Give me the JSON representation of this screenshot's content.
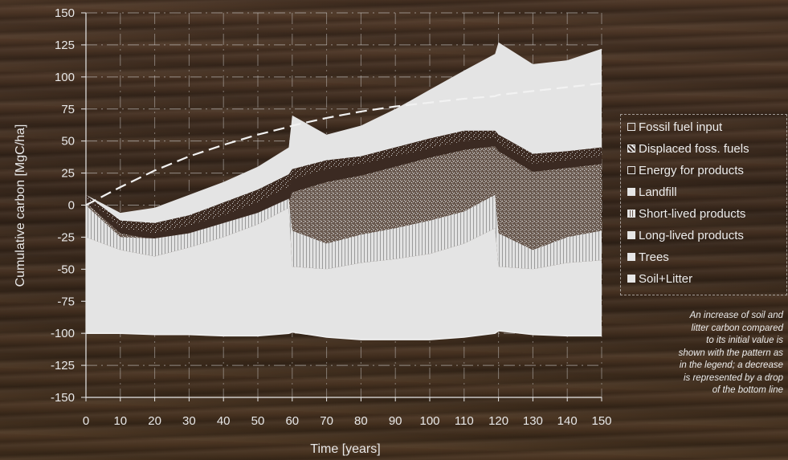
{
  "chart_data": {
    "type": "area",
    "title": "",
    "xlabel": "Time [years]",
    "ylabel": "Cumulative carbon [MgC/ha]",
    "xlim": [
      0,
      150
    ],
    "ylim": [
      -150,
      150
    ],
    "xticks": [
      0,
      10,
      20,
      30,
      40,
      50,
      60,
      70,
      80,
      90,
      100,
      110,
      120,
      130,
      140,
      150
    ],
    "yticks": [
      150,
      125,
      100,
      75,
      50,
      25,
      0,
      -25,
      -50,
      -75,
      -100,
      -125,
      -150
    ],
    "grid": true,
    "legend_position": "right",
    "x": [
      0,
      10,
      20,
      30,
      40,
      50,
      59,
      60,
      70,
      80,
      90,
      100,
      110,
      119,
      120,
      130,
      140,
      150
    ],
    "series": [
      {
        "name": "Fossil fuel input",
        "pattern": "dashed-line",
        "values": [
          0,
          14,
          27,
          38,
          47,
          55,
          61,
          62,
          68,
          73,
          77,
          80,
          83,
          85,
          86,
          89,
          92,
          95
        ]
      },
      {
        "name": "Displaced foss. fuels",
        "boundary": "top-of-stack",
        "values": [
          8,
          -6,
          -2,
          8,
          18,
          30,
          45,
          70,
          55,
          62,
          75,
          90,
          105,
          118,
          127,
          110,
          113,
          122
        ]
      },
      {
        "name": "Energy for products",
        "boundary": "top",
        "values": [
          8,
          -12,
          -14,
          -8,
          2,
          12,
          24,
          28,
          35,
          38,
          45,
          52,
          58,
          58,
          55,
          40,
          42,
          45
        ]
      },
      {
        "name": "Landfill",
        "boundary": "top",
        "values": [
          6,
          -18,
          -22,
          -16,
          -8,
          2,
          14,
          20,
          28,
          32,
          38,
          44,
          50,
          52,
          48,
          32,
          35,
          38
        ]
      },
      {
        "name": "Short-lived products",
        "boundary": "top",
        "values": [
          2,
          -22,
          -27,
          -24,
          -17,
          -8,
          3,
          10,
          18,
          23,
          30,
          37,
          43,
          46,
          42,
          26,
          29,
          32
        ]
      },
      {
        "name": "Long-lived products",
        "boundary": "top",
        "values": [
          0,
          -25,
          -26,
          -22,
          -14,
          -6,
          5,
          -20,
          -30,
          -23,
          -18,
          -12,
          -5,
          8,
          -22,
          -35,
          -25,
          -20
        ]
      },
      {
        "name": "Trees",
        "boundary": "top",
        "values": [
          -25,
          -35,
          -40,
          -33,
          -25,
          -15,
          -2,
          -48,
          -50,
          -45,
          -42,
          -38,
          -30,
          -18,
          -48,
          -50,
          -45,
          -43
        ]
      },
      {
        "name": "Soil+Litter",
        "boundary": "bottom-of-stack",
        "values": [
          -100,
          -100,
          -101,
          -101,
          -102,
          -102,
          -100,
          -99,
          -103,
          -105,
          -105,
          -105,
          -103,
          -100,
          -98,
          -101,
          -102,
          -102
        ]
      }
    ],
    "colors": {
      "light_fill": "#e4e4e4",
      "dark_fill": "#3b2a22",
      "background": "#3a2a1e",
      "text": "#e8e8e8"
    }
  },
  "legend": {
    "items": [
      {
        "label": "Fossil fuel input",
        "swatch": "hollow"
      },
      {
        "label": "Displaced foss. fuels",
        "swatch": "hatched"
      },
      {
        "label": "Energy for products",
        "swatch": "hollow"
      },
      {
        "label": "Landfill",
        "swatch": "solid"
      },
      {
        "label": "Short-lived products",
        "swatch": "hatched"
      },
      {
        "label": "Long-lived products",
        "swatch": "solid"
      },
      {
        "label": "Trees",
        "swatch": "solid"
      },
      {
        "label": "Soil+Litter",
        "swatch": "solid"
      }
    ]
  },
  "note": {
    "lines": [
      "An increase of soil and",
      "litter carbon compared",
      "to its initial value is",
      "shown with the pattern as",
      "in the legend; a decrease",
      "is represented by a drop",
      "of the bottom line"
    ]
  }
}
